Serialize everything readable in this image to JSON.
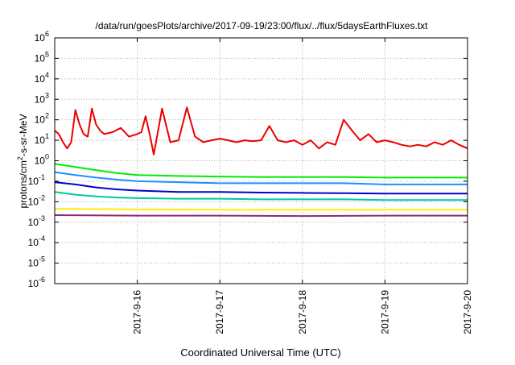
{
  "chart_data": {
    "type": "line",
    "title": "/data/run/goesPlots/archive/2017-09-19/23:00/flux/../flux/5daysEarthFluxes.txt",
    "xlabel": "Coordinated Universal Time (UTC)",
    "ylabel_prefix": "protons/cm",
    "ylabel_sup": "2",
    "ylabel_suffix": "-s-sr-MeV",
    "yscale": "log",
    "ylim": [
      1e-06,
      1000000.0
    ],
    "xlim": [
      0,
      5
    ],
    "grid": true,
    "y_ticks": [
      {
        "base": "10",
        "exp": "6",
        "value": 1000000.0
      },
      {
        "base": "10",
        "exp": "5",
        "value": 100000.0
      },
      {
        "base": "10",
        "exp": "4",
        "value": 10000.0
      },
      {
        "base": "10",
        "exp": "3",
        "value": 1000.0
      },
      {
        "base": "10",
        "exp": "2",
        "value": 100.0
      },
      {
        "base": "10",
        "exp": "1",
        "value": 10.0
      },
      {
        "base": "10",
        "exp": "0",
        "value": 1.0
      },
      {
        "base": "10",
        "exp": "-1",
        "value": 0.1
      },
      {
        "base": "10",
        "exp": "-2",
        "value": 0.01
      },
      {
        "base": "10",
        "exp": "-3",
        "value": 0.001
      },
      {
        "base": "10",
        "exp": "-4",
        "value": 0.0001
      },
      {
        "base": "10",
        "exp": "-5",
        "value": 1e-05
      },
      {
        "base": "10",
        "exp": "-6",
        "value": 1e-06
      }
    ],
    "x_ticks": [
      {
        "label": "2017-9-16",
        "value": 1
      },
      {
        "label": "2017-9-17",
        "value": 2
      },
      {
        "label": "2017-9-18",
        "value": 3
      },
      {
        "label": "2017-9-19",
        "value": 4
      },
      {
        "label": "2017-9-20",
        "value": 5
      }
    ],
    "series": [
      {
        "color": "#ee0000",
        "x": [
          0,
          0.05,
          0.1,
          0.15,
          0.2,
          0.25,
          0.3,
          0.35,
          0.4,
          0.45,
          0.5,
          0.55,
          0.6,
          0.7,
          0.8,
          0.9,
          1.0,
          1.05,
          1.1,
          1.15,
          1.2,
          1.3,
          1.4,
          1.5,
          1.6,
          1.7,
          1.8,
          1.9,
          2.0,
          2.1,
          2.2,
          2.3,
          2.4,
          2.5,
          2.6,
          2.7,
          2.8,
          2.9,
          3.0,
          3.1,
          3.2,
          3.3,
          3.4,
          3.5,
          3.6,
          3.7,
          3.8,
          3.9,
          4.0,
          4.1,
          4.2,
          4.3,
          4.4,
          4.5,
          4.6,
          4.7,
          4.8,
          4.9,
          5.0
        ],
        "y": [
          30,
          20,
          8,
          4,
          8,
          300,
          60,
          20,
          15,
          350,
          60,
          30,
          20,
          25,
          40,
          15,
          20,
          25,
          150,
          20,
          2,
          350,
          8,
          10,
          400,
          15,
          8,
          10,
          12,
          10,
          8,
          10,
          9,
          10,
          50,
          10,
          8,
          10,
          6,
          10,
          4,
          8,
          6,
          100,
          30,
          10,
          20,
          8,
          10,
          8,
          6,
          5,
          6,
          5,
          8,
          6,
          10,
          6,
          4
        ]
      },
      {
        "color": "#00ee00",
        "x": [
          0,
          0.25,
          0.5,
          0.75,
          1.0,
          1.5,
          2.0,
          2.5,
          3.0,
          3.5,
          4.0,
          4.5,
          5.0
        ],
        "y": [
          0.7,
          0.5,
          0.35,
          0.25,
          0.2,
          0.18,
          0.17,
          0.16,
          0.16,
          0.16,
          0.15,
          0.15,
          0.15
        ]
      },
      {
        "color": "#1e90ff",
        "x": [
          0,
          0.25,
          0.5,
          0.75,
          1.0,
          1.5,
          2.0,
          2.5,
          3.0,
          3.5,
          4.0,
          4.5,
          5.0
        ],
        "y": [
          0.28,
          0.2,
          0.15,
          0.12,
          0.1,
          0.09,
          0.08,
          0.08,
          0.08,
          0.08,
          0.07,
          0.07,
          0.07
        ]
      },
      {
        "color": "#0000cd",
        "x": [
          0,
          0.25,
          0.5,
          0.75,
          1.0,
          1.5,
          2.0,
          2.5,
          3.0,
          3.5,
          4.0,
          4.5,
          5.0
        ],
        "y": [
          0.09,
          0.07,
          0.05,
          0.04,
          0.035,
          0.03,
          0.03,
          0.028,
          0.027,
          0.026,
          0.025,
          0.025,
          0.025
        ]
      },
      {
        "color": "#00c8a0",
        "x": [
          0,
          0.25,
          0.5,
          0.75,
          1.0,
          1.5,
          2.0,
          2.5,
          3.0,
          3.5,
          4.0,
          4.5,
          5.0
        ],
        "y": [
          0.03,
          0.022,
          0.018,
          0.016,
          0.015,
          0.014,
          0.014,
          0.013,
          0.013,
          0.013,
          0.012,
          0.012,
          0.012
        ]
      },
      {
        "color": "#ffee00",
        "x": [
          0,
          1,
          2,
          3,
          4,
          5
        ],
        "y": [
          0.0045,
          0.0042,
          0.004,
          0.004,
          0.004,
          0.004
        ]
      },
      {
        "color": "#8b2a7a",
        "x": [
          0,
          1,
          2,
          3,
          4,
          5
        ],
        "y": [
          0.0022,
          0.0021,
          0.0021,
          0.002,
          0.0021,
          0.0021
        ]
      }
    ]
  }
}
